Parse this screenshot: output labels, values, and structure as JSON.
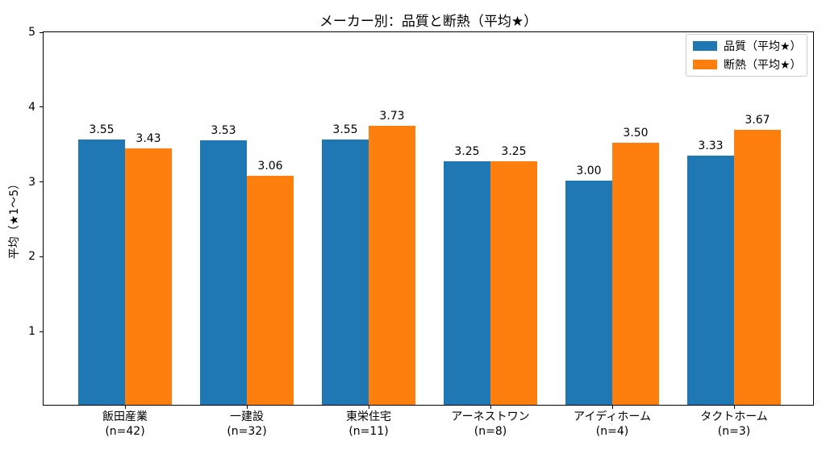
{
  "colors": {
    "quality_bar": "#1f77b4",
    "insulation_bar": "#ff7f0e",
    "axis": "#000000",
    "legend_border": "#cccccc",
    "background": "#ffffff"
  },
  "chart_data": {
    "type": "bar",
    "title": "メーカー別：品質と断熱（平均★）",
    "xlabel": "",
    "ylabel": "平均（★1～5）",
    "ylim": [
      0,
      5
    ],
    "yticks": [
      1,
      2,
      3,
      4,
      5
    ],
    "grid": false,
    "legend_position": "upper right",
    "categories": [
      "飯田産業",
      "一建設",
      "東栄住宅",
      "アーネストワン",
      "アイディホーム",
      "タクトホーム"
    ],
    "category_sublabels": [
      "(n=42)",
      "(n=32)",
      "(n=11)",
      "(n=8)",
      "(n=4)",
      "(n=3)"
    ],
    "series": [
      {
        "name": "品質（平均★）",
        "color": "#1f77b4",
        "values": [
          3.55,
          3.53,
          3.55,
          3.25,
          3.0,
          3.33
        ],
        "value_labels": [
          "3.55",
          "3.53",
          "3.55",
          "3.25",
          "3.00",
          "3.33"
        ]
      },
      {
        "name": "断熱（平均★）",
        "color": "#ff7f0e",
        "values": [
          3.43,
          3.06,
          3.73,
          3.25,
          3.5,
          3.67
        ],
        "value_labels": [
          "3.43",
          "3.06",
          "3.73",
          "3.25",
          "3.50",
          "3.67"
        ]
      }
    ]
  }
}
